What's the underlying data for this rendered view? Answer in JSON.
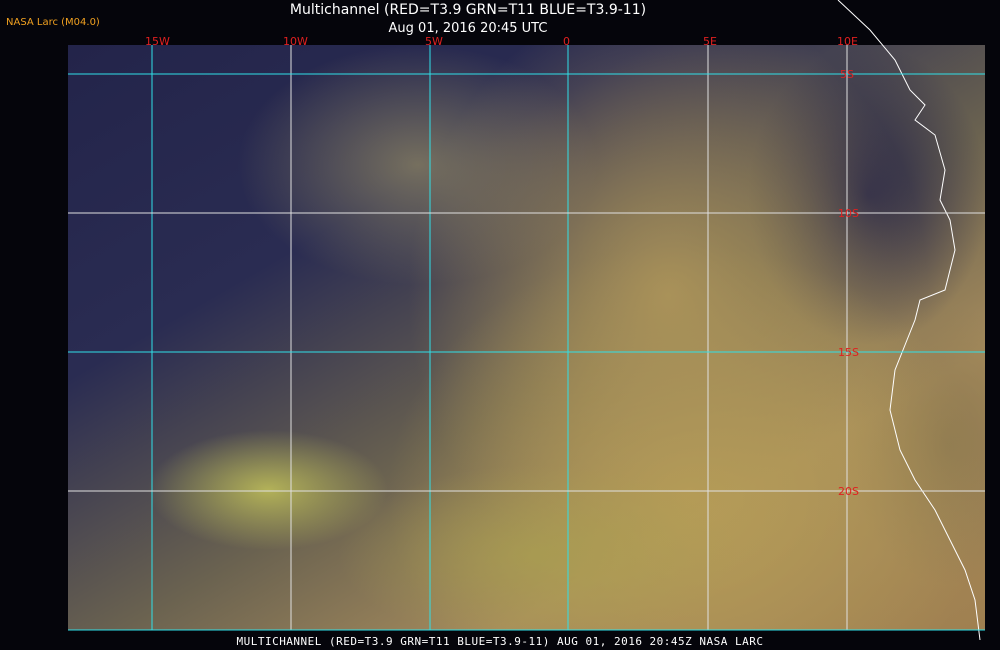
{
  "header": {
    "title": "Multichannel (RED=T3.9 GRN=T11 BLUE=T3.9-11)",
    "datetime": "Aug 01, 2016 20:45 UTC",
    "version_tag": "NASA Larc (M04.0)"
  },
  "longitude_labels": [
    "15W",
    "10W",
    "5W",
    "0",
    "5E",
    "10E"
  ],
  "latitude_labels": [
    "5S",
    "10S",
    "15S",
    "20S"
  ],
  "footer": {
    "caption": "MULTICHANNEL (RED=T3.9 GRN=T11 BLUE=T3.9-11) AUG 01, 2016 20:45Z   NASA LARC"
  },
  "colors": {
    "grid_cyan": "#30e0e8",
    "grid_white": "#e0e0e0",
    "label_red": "#e02020",
    "coastline": "#ffffff",
    "tag_orange": "#f0a020"
  }
}
